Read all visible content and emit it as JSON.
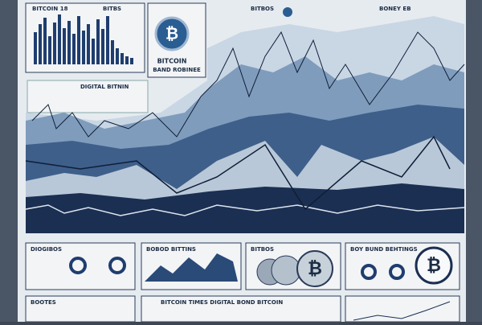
{
  "header": {
    "left_title": "BITCOIN 18",
    "left_tag": "BITBS",
    "logo_title": "BITCOIN",
    "logo_subtitle": "BAND ROBINEE",
    "center_tag": "BITBOS",
    "right_tag": "BONEY EB"
  },
  "side": {
    "title": "DIGITAL BITNIN"
  },
  "panels": [
    {
      "title": "DIOGIBOS"
    },
    {
      "title": "BOBOD BITTINS"
    },
    {
      "title": "BITBOS"
    },
    {
      "title": "BOY BUND BEHTINGS"
    }
  ],
  "footer": {
    "left": "BOOTES",
    "center": "BITCOIN TIMES DIGITAL BOND BITCOIN"
  }
}
